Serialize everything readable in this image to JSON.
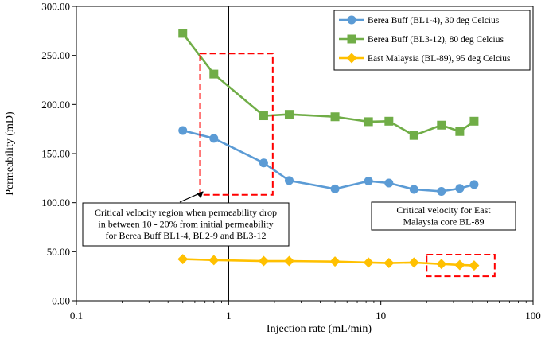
{
  "chart_data": {
    "type": "line",
    "x_scale": "log",
    "xlabel": "Injection rate (mL/min)",
    "ylabel": "Permeability (mD)",
    "xlim": [
      0.1,
      100
    ],
    "ylim": [
      0,
      300
    ],
    "x_ticks": [
      0.1,
      1,
      10,
      100
    ],
    "x_tick_labels": [
      "0.1",
      "1",
      "10",
      "100"
    ],
    "y_ticks": [
      0,
      50,
      100,
      150,
      200,
      250,
      300
    ],
    "y_tick_labels": [
      "0.00",
      "50.00",
      "100.00",
      "150.00",
      "200.00",
      "250.00",
      "300.00"
    ],
    "legend_position": "top-right",
    "series": [
      {
        "name": "Berea Buff (BL1-4), 30 deg Celcius",
        "color": "#5B9BD5",
        "marker": "circle",
        "x": [
          0.5,
          0.8,
          1.7,
          2.5,
          5,
          8.3,
          11.3,
          16.5,
          25,
          33,
          41
        ],
        "values": [
          173.5,
          165.5,
          140.5,
          122.5,
          114,
          122,
          120,
          113.5,
          111.5,
          114.5,
          118.5
        ]
      },
      {
        "name": "Berea Buff (BL3-12), 80 deg Celcius",
        "color": "#70AD47",
        "marker": "square",
        "x": [
          0.5,
          0.8,
          1.7,
          2.5,
          5,
          8.3,
          11.3,
          16.5,
          25,
          33,
          41
        ],
        "values": [
          272.5,
          231,
          188.5,
          190,
          187.5,
          182.5,
          183,
          168.5,
          179,
          172.5,
          183
        ]
      },
      {
        "name": "East Malaysia (BL-89), 95 deg Celcius",
        "color": "#FFC000",
        "marker": "diamond",
        "x": [
          0.5,
          0.8,
          1.7,
          2.5,
          5,
          8.3,
          11.3,
          16.5,
          25,
          33,
          41
        ],
        "values": [
          42.5,
          41.5,
          40.5,
          40.5,
          40,
          39,
          38.5,
          39,
          37.5,
          36.5,
          36
        ]
      }
    ],
    "annotations": [
      {
        "id": "critical-region-berea",
        "text": [
          "Critical velocity region when permeability drop",
          "in between 10 - 20% from initial permeability",
          "for Berea Buff BL1-4, BL2-9 and BL3-12"
        ],
        "x_range": [
          0.65,
          1.95
        ],
        "y_range": [
          108,
          252
        ],
        "box_color": "#FF0000"
      },
      {
        "id": "critical-velocity-malaysia",
        "text": [
          "Critical velocity for East",
          "Malaysia core BL-89"
        ],
        "x_range": [
          20,
          56
        ],
        "y_range": [
          25,
          47
        ],
        "box_color": "#FF0000"
      }
    ],
    "reference_line_x": 1
  }
}
